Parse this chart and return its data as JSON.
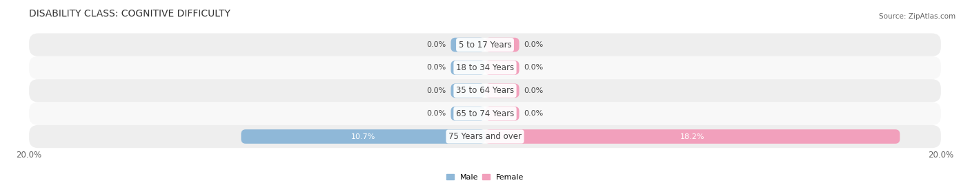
{
  "title": "DISABILITY CLASS: COGNITIVE DIFFICULTY",
  "source": "Source: ZipAtlas.com",
  "categories": [
    "5 to 17 Years",
    "18 to 34 Years",
    "35 to 64 Years",
    "65 to 74 Years",
    "75 Years and over"
  ],
  "male_values": [
    0.0,
    0.0,
    0.0,
    0.0,
    10.7
  ],
  "female_values": [
    0.0,
    0.0,
    0.0,
    0.0,
    18.2
  ],
  "max_val": 20.0,
  "male_color": "#8fb8d8",
  "female_color": "#f2a0bc",
  "row_colors": [
    "#eeeeee",
    "#f8f8f8"
  ],
  "label_color": "#444444",
  "title_color": "#333333",
  "axis_label_color": "#666666",
  "legend_male_color": "#8fb8d8",
  "legend_female_color": "#f2a0bc",
  "bar_height": 0.62,
  "stub_size": 1.5,
  "title_fontsize": 10,
  "label_fontsize": 8,
  "category_fontsize": 8.5,
  "axis_fontsize": 8.5,
  "value_color_on_bar": "#ffffff",
  "value_color_18_2": "#ffffff"
}
